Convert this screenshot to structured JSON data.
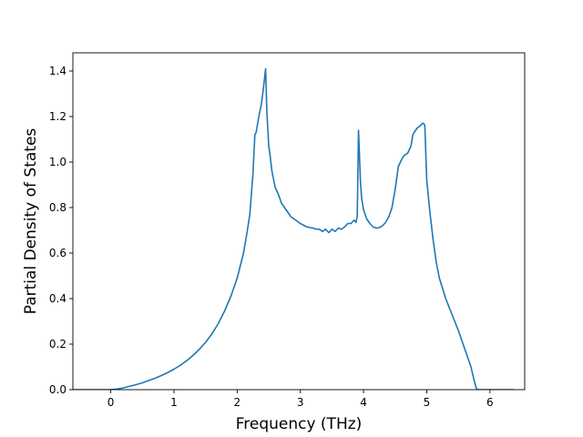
{
  "chart_data": {
    "type": "line",
    "title": "",
    "xlabel": "Frequency (THz)",
    "ylabel": "Partial Density of States",
    "xlim": [
      -0.6,
      6.55
    ],
    "ylim": [
      0.0,
      1.48
    ],
    "xticks": [
      0,
      1,
      2,
      3,
      4,
      5,
      6
    ],
    "yticks": [
      0.0,
      0.2,
      0.4,
      0.6,
      0.8,
      1.0,
      1.2,
      1.4
    ],
    "xtick_labels": [
      "0",
      "1",
      "2",
      "3",
      "4",
      "5",
      "6"
    ],
    "ytick_labels": [
      "0.0",
      "0.2",
      "0.4",
      "0.6",
      "0.8",
      "1.0",
      "1.2",
      "1.4"
    ],
    "grid": false,
    "legend": "none",
    "line_color": "#1f77b4",
    "series": [
      {
        "x": [
          -0.6,
          -0.4,
          -0.2,
          0.0,
          0.1,
          0.2,
          0.3,
          0.4,
          0.5,
          0.6,
          0.7,
          0.8,
          0.9,
          1.0,
          1.1,
          1.2,
          1.3,
          1.4,
          1.5,
          1.6,
          1.7,
          1.8,
          1.9,
          2.0,
          2.1,
          2.15,
          2.2,
          2.25,
          2.28,
          2.3,
          2.33,
          2.35,
          2.38,
          2.4,
          2.43,
          2.45,
          2.47,
          2.5,
          2.52,
          2.55,
          2.6,
          2.65,
          2.7,
          2.75,
          2.8,
          2.85,
          2.9,
          3.0,
          3.1,
          3.2,
          3.25,
          3.3,
          3.35,
          3.4,
          3.45,
          3.5,
          3.55,
          3.6,
          3.65,
          3.7,
          3.75,
          3.8,
          3.85,
          3.88,
          3.9,
          3.92,
          3.95,
          3.97,
          4.0,
          4.05,
          4.1,
          4.15,
          4.2,
          4.25,
          4.3,
          4.35,
          4.4,
          4.45,
          4.5,
          4.55,
          4.6,
          4.62,
          4.65,
          4.7,
          4.75,
          4.78,
          4.8,
          4.85,
          4.9,
          4.93,
          4.95,
          4.97,
          5.0,
          5.05,
          5.1,
          5.15,
          5.2,
          5.3,
          5.4,
          5.5,
          5.6,
          5.7,
          5.75,
          5.78,
          5.8,
          5.85,
          5.95,
          6.1,
          6.25,
          6.38
        ],
        "y": [
          0.0,
          0.0,
          0.0,
          0.0,
          0.003,
          0.008,
          0.015,
          0.022,
          0.03,
          0.04,
          0.05,
          0.062,
          0.075,
          0.09,
          0.107,
          0.127,
          0.15,
          0.177,
          0.208,
          0.245,
          0.29,
          0.345,
          0.41,
          0.49,
          0.6,
          0.68,
          0.77,
          0.95,
          1.12,
          1.13,
          1.18,
          1.21,
          1.25,
          1.29,
          1.36,
          1.41,
          1.22,
          1.07,
          1.03,
          0.96,
          0.89,
          0.86,
          0.82,
          0.8,
          0.78,
          0.76,
          0.75,
          0.73,
          0.715,
          0.71,
          0.705,
          0.705,
          0.695,
          0.705,
          0.69,
          0.705,
          0.695,
          0.71,
          0.705,
          0.715,
          0.73,
          0.73,
          0.745,
          0.735,
          0.76,
          1.14,
          0.92,
          0.84,
          0.79,
          0.75,
          0.73,
          0.715,
          0.71,
          0.712,
          0.72,
          0.735,
          0.76,
          0.8,
          0.88,
          0.98,
          1.01,
          1.02,
          1.03,
          1.04,
          1.07,
          1.12,
          1.13,
          1.15,
          1.16,
          1.17,
          1.17,
          1.16,
          0.92,
          0.78,
          0.66,
          0.56,
          0.49,
          0.4,
          0.33,
          0.26,
          0.18,
          0.1,
          0.04,
          0.01,
          0.0,
          0.0,
          0.0,
          0.0,
          0.0,
          0.0
        ]
      }
    ]
  }
}
